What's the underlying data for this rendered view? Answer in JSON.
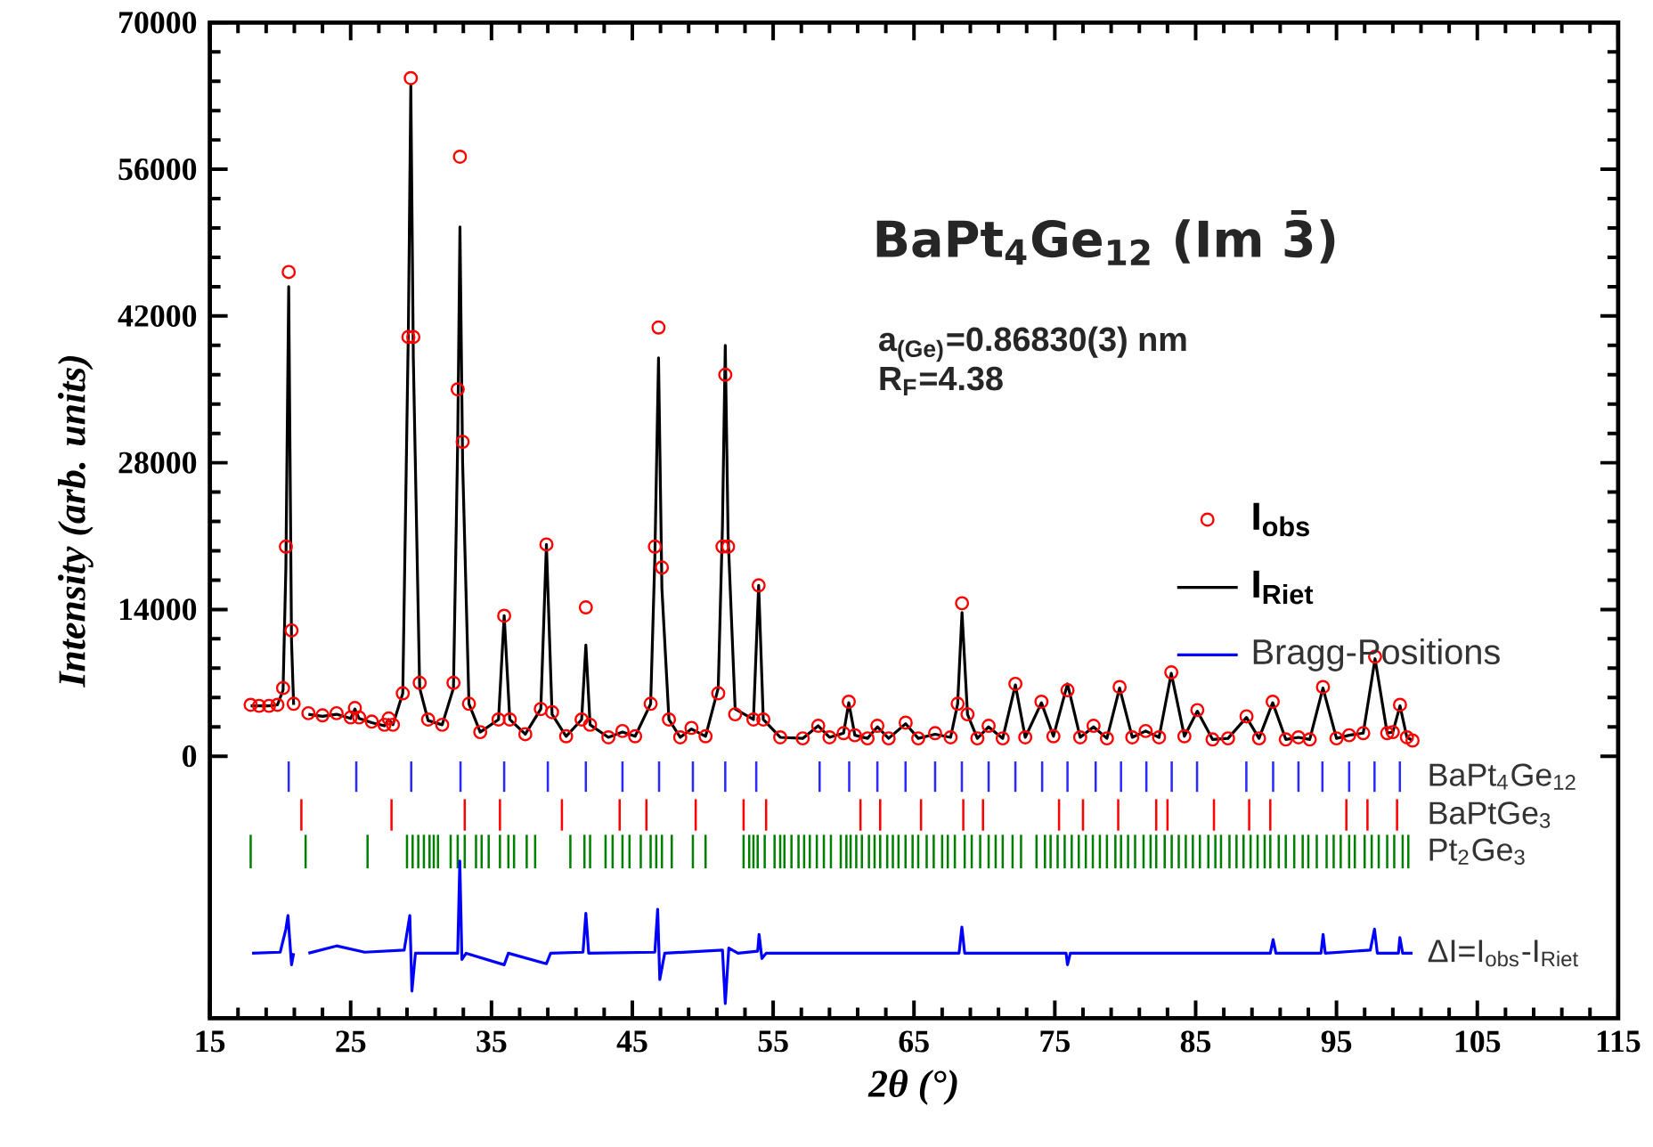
{
  "chart_data": {
    "type": "line",
    "title": "BaPt$_{4}$Ge$_{12}$ (Im 3̄)",
    "xlabel": "2θ (°)",
    "ylabel": "Intensity (arb. units)",
    "annotations": [
      "Bragg-Positions",
      "a$_{(Ge)}$=0.86830(3) nm",
      "R$_{F}$=4.38"
    ],
    "xlim": [
      15,
      115
    ],
    "xticks": [
      15,
      25,
      35,
      45,
      55,
      65,
      75,
      85,
      95,
      105,
      115
    ],
    "ylim": [
      -25000,
      70000
    ],
    "yticks": [
      0,
      14000,
      28000,
      42000,
      56000,
      70000
    ],
    "legend": "right",
    "x": [
      17.9,
      18.5,
      19.2,
      19.8,
      20.2,
      20.4,
      20.6,
      20.8,
      20.95,
      21.4,
      22.0,
      23.0,
      24.0,
      25.0,
      25.3,
      25.6,
      26.5,
      27.4,
      27.7,
      28.0,
      28.7,
      29.1,
      29.27,
      29.45,
      29.9,
      30.5,
      31.5,
      32.3,
      32.6,
      32.76,
      32.95,
      33.4,
      34.2,
      35.5,
      35.9,
      36.3,
      37.4,
      38.5,
      38.9,
      39.3,
      40.3,
      41.4,
      41.7,
      42.0,
      43.3,
      44.3,
      45.2,
      46.3,
      46.6,
      46.86,
      47.1,
      47.6,
      48.4,
      49.2,
      50.2,
      51.1,
      51.4,
      51.6,
      51.8,
      52.3,
      53.6,
      53.97,
      54.3,
      55.5,
      57.1,
      58.2,
      59.0,
      60.0,
      60.37,
      60.8,
      61.7,
      62.4,
      63.2,
      64.41,
      65.3,
      66.5,
      67.6,
      68.1,
      68.41,
      68.8,
      69.5,
      70.3,
      71.3,
      72.2,
      72.9,
      74.05,
      74.9,
      75.9,
      76.8,
      77.75,
      78.7,
      79.6,
      80.5,
      81.45,
      82.4,
      83.27,
      84.2,
      85.12,
      86.2,
      87.3,
      88.61,
      89.5,
      90.47,
      91.4,
      92.3,
      93.1,
      94.04,
      95.0,
      95.9,
      96.9,
      97.74,
      98.6,
      99.0,
      99.51,
      100.0,
      100.4
    ],
    "series": [
      {
        "name": "I$_{obs}$",
        "type": "scatter",
        "marker": "circle",
        "color": "#ff0000",
        "values": [
          4900,
          4800,
          4800,
          4900,
          6500,
          20000,
          46200,
          12000,
          5000,
          null,
          4100,
          3900,
          4100,
          3700,
          4600,
          3700,
          3300,
          3000,
          3600,
          3000,
          6000,
          40000,
          64700,
          40000,
          7000,
          3500,
          3000,
          7000,
          35000,
          57200,
          30000,
          5000,
          2300,
          3500,
          13400,
          3500,
          2100,
          4500,
          20200,
          4200,
          1900,
          3500,
          14200,
          3000,
          1800,
          2400,
          1900,
          5000,
          20000,
          40900,
          18000,
          3500,
          1800,
          2700,
          1900,
          6000,
          20000,
          36400,
          20000,
          4000,
          3500,
          16300,
          3500,
          1800,
          1700,
          2900,
          1800,
          2200,
          5200,
          2000,
          1700,
          2900,
          1700,
          3200,
          1700,
          2200,
          1800,
          5000,
          14600,
          4000,
          1700,
          2900,
          1700,
          6900,
          1800,
          5200,
          1900,
          6300,
          1800,
          2900,
          1700,
          6600,
          1800,
          2400,
          1800,
          8000,
          1900,
          4400,
          1600,
          1700,
          3800,
          1700,
          5200,
          1600,
          1800,
          1600,
          6600,
          1700,
          2000,
          2200,
          9500,
          2200,
          2300,
          4900,
          1800,
          1500
        ]
      },
      {
        "name": "I$_{Riet}$",
        "line_style": "solid",
        "color": "#000000",
        "values": [
          4800,
          4800,
          4800,
          4900,
          6300,
          18000,
          44800,
          11000,
          4900,
          null,
          4000,
          3800,
          4000,
          3600,
          4500,
          3600,
          3200,
          2900,
          3500,
          3000,
          6000,
          41000,
          64000,
          38000,
          6500,
          3400,
          3000,
          6500,
          30000,
          50500,
          28000,
          5000,
          2300,
          3500,
          13400,
          3500,
          2100,
          4500,
          20200,
          4000,
          1900,
          3500,
          10600,
          3000,
          1800,
          2300,
          1900,
          5000,
          19000,
          38000,
          16000,
          3500,
          1800,
          2600,
          1900,
          6500,
          22000,
          39200,
          21000,
          4500,
          3500,
          16300,
          3500,
          1800,
          1700,
          2900,
          1800,
          2200,
          5100,
          2000,
          1700,
          2800,
          1700,
          3100,
          1700,
          2100,
          1800,
          5000,
          13700,
          4000,
          1700,
          2800,
          1700,
          6800,
          1800,
          5100,
          1900,
          6900,
          1800,
          2800,
          1700,
          6500,
          1800,
          2400,
          1800,
          7900,
          1900,
          4300,
          1600,
          1700,
          3700,
          1700,
          5100,
          1600,
          1800,
          1600,
          6500,
          1700,
          2000,
          2200,
          9300,
          2200,
          2300,
          4800,
          1800,
          1500
        ]
      },
      {
        "name": "BaPt$_{4}$Ge$_{12}$",
        "type": "bar",
        "color": "#2a2aff",
        "x": [
          20.6,
          25.4,
          29.3,
          32.8,
          35.9,
          39.0,
          41.7,
          44.3,
          46.9,
          49.3,
          51.6,
          53.8,
          58.3,
          60.4,
          62.4,
          64.4,
          66.5,
          68.4,
          70.3,
          72.2,
          74.1,
          75.9,
          77.9,
          79.7,
          81.5,
          83.3,
          85.1,
          88.6,
          90.5,
          92.3,
          94.0,
          95.9,
          97.7,
          99.5
        ],
        "base": [
          -3400,
          -3400,
          -3400,
          -3400,
          -3400,
          -3400,
          -3400,
          -3400,
          -3400,
          -3400,
          -3400,
          -3400,
          -3400,
          -3400,
          -3400,
          -3400,
          -3400,
          -3400,
          -3400,
          -3400,
          -3400,
          -3400,
          -3400,
          -3400,
          -3400,
          -3400,
          -3400,
          -3400,
          -3400,
          -3400,
          -3400,
          -3400,
          -3400,
          -3400
        ],
        "values": [
          2900,
          2900,
          2900,
          2900,
          2900,
          2900,
          2900,
          2900,
          2900,
          2900,
          2900,
          2900,
          2900,
          2900,
          2900,
          2900,
          2900,
          2900,
          2900,
          2900,
          2900,
          2900,
          2900,
          2900,
          2900,
          2900,
          2900,
          2900,
          2900,
          2900,
          2900,
          2900,
          2900,
          2900
        ]
      },
      {
        "name": "BaPtGe$_{3}$",
        "type": "bar",
        "color": "#ff0000",
        "x": [
          21.5,
          27.9,
          33.1,
          35.6,
          40.0,
          44.1,
          46.0,
          49.5,
          52.9,
          54.5,
          61.2,
          62.6,
          65.5,
          68.5,
          69.9,
          75.3,
          77.0,
          79.5,
          82.2,
          83.0,
          86.3,
          88.8,
          90.3,
          95.7,
          97.2,
          99.3
        ],
        "base": [
          -7100,
          -7100,
          -7100,
          -7100,
          -7100,
          -7100,
          -7100,
          -7100,
          -7100,
          -7100,
          -7100,
          -7100,
          -7100,
          -7100,
          -7100,
          -7100,
          -7100,
          -7100,
          -7100,
          -7100,
          -7100,
          -7100,
          -7100,
          -7100,
          -7100,
          -7100
        ],
        "values": [
          3000,
          3000,
          3000,
          3000,
          3000,
          3000,
          3000,
          3000,
          3000,
          3000,
          3000,
          3000,
          3000,
          3000,
          3000,
          3000,
          3000,
          3000,
          3000,
          3000,
          3000,
          3000,
          3000,
          3000,
          3000,
          3000
        ]
      },
      {
        "name": "Pt$_{2}$Ge$_{3}$",
        "type": "bar",
        "color": "#008000",
        "x": [
          17.9,
          21.8,
          26.2,
          29.0,
          29.4,
          29.8,
          30.2,
          30.6,
          30.9,
          31.2,
          32.1,
          32.6,
          33.1,
          33.9,
          34.3,
          34.8,
          35.6,
          36.2,
          36.6,
          37.5,
          38.1,
          40.6,
          41.6,
          42.0,
          43.1,
          43.6,
          44.3,
          44.8,
          45.6,
          46.3,
          46.7,
          47.1,
          47.8,
          49.3,
          50.2,
          52.9,
          53.3,
          53.6,
          53.9,
          54.4,
          55.1,
          55.5,
          55.8,
          56.3,
          56.8,
          57.2,
          57.6,
          58.1,
          58.6,
          59.1,
          59.8,
          60.2,
          60.5,
          60.9,
          61.3,
          61.8,
          62.2,
          62.6,
          63.1,
          63.5,
          63.9,
          64.4,
          64.9,
          65.3,
          65.9,
          66.4,
          67.0,
          67.4,
          67.9,
          68.6,
          69.1,
          69.7,
          70.3,
          70.8,
          71.3,
          72.0,
          72.6,
          73.7,
          74.3,
          74.7,
          75.2,
          75.7,
          76.2,
          76.7,
          77.2,
          77.7,
          78.2,
          78.7,
          79.3,
          79.7,
          80.2,
          80.7,
          81.3,
          81.8,
          82.2,
          82.8,
          83.3,
          83.8,
          84.3,
          84.8,
          85.3,
          85.9,
          86.4,
          86.8,
          87.4,
          87.9,
          88.4,
          88.9,
          89.4,
          89.9,
          90.3,
          90.9,
          91.4,
          92.0,
          92.6,
          93.0,
          93.6,
          94.3,
          94.8,
          95.3,
          95.9,
          96.3,
          97.0,
          97.5,
          98.0,
          98.6,
          99.1,
          99.7,
          100.1
        ],
        "base": [
          -10700,
          -10700,
          -10700,
          -10700,
          -10700,
          -10700,
          -10700,
          -10700,
          -10700,
          -10700,
          -10700,
          -10700,
          -10700,
          -10700,
          -10700,
          -10700,
          -10700,
          -10700,
          -10700,
          -10700,
          -10700,
          -10700,
          -10700,
          -10700,
          -10700,
          -10700,
          -10700,
          -10700,
          -10700,
          -10700,
          -10700,
          -10700,
          -10700,
          -10700,
          -10700,
          -10700,
          -10700,
          -10700,
          -10700,
          -10700,
          -10700,
          -10700,
          -10700,
          -10700,
          -10700,
          -10700,
          -10700,
          -10700,
          -10700,
          -10700,
          -10700,
          -10700,
          -10700,
          -10700,
          -10700,
          -10700,
          -10700,
          -10700,
          -10700,
          -10700,
          -10700,
          -10700,
          -10700,
          -10700,
          -10700,
          -10700,
          -10700,
          -10700,
          -10700,
          -10700,
          -10700,
          -10700,
          -10700,
          -10700,
          -10700,
          -10700,
          -10700,
          -10700,
          -10700,
          -10700,
          -10700,
          -10700,
          -10700,
          -10700,
          -10700,
          -10700,
          -10700,
          -10700,
          -10700,
          -10700,
          -10700,
          -10700,
          -10700,
          -10700,
          -10700,
          -10700,
          -10700,
          -10700,
          -10700,
          -10700,
          -10700,
          -10700,
          -10700,
          -10700,
          -10700,
          -10700,
          -10700,
          -10700,
          -10700,
          -10700,
          -10700,
          -10700,
          -10700,
          -10700,
          -10700,
          -10700,
          -10700,
          -10700,
          -10700,
          -10700,
          -10700,
          -10700,
          -10700,
          -10700,
          -10700,
          -10700,
          -10700,
          -10700,
          -10700
        ],
        "values": [
          3200,
          3200,
          3200,
          3200,
          3200,
          3200,
          3200,
          3200,
          3200,
          3200,
          3200,
          3200,
          3200,
          3200,
          3200,
          3200,
          3200,
          3200,
          3200,
          3200,
          3200,
          3200,
          3200,
          3200,
          3200,
          3200,
          3200,
          3200,
          3200,
          3200,
          3200,
          3200,
          3200,
          3200,
          3200,
          3200,
          3200,
          3200,
          3200,
          3200,
          3200,
          3200,
          3200,
          3200,
          3200,
          3200,
          3200,
          3200,
          3200,
          3200,
          3200,
          3200,
          3200,
          3200,
          3200,
          3200,
          3200,
          3200,
          3200,
          3200,
          3200,
          3200,
          3200,
          3200,
          3200,
          3200,
          3200,
          3200,
          3200,
          3200,
          3200,
          3200,
          3200,
          3200,
          3200,
          3200,
          3200,
          3200,
          3200,
          3200,
          3200,
          3200,
          3200,
          3200,
          3200,
          3200,
          3200,
          3200,
          3200,
          3200,
          3200,
          3200,
          3200,
          3200,
          3200,
          3200,
          3200,
          3200,
          3200,
          3200,
          3200,
          3200,
          3200,
          3200,
          3200,
          3200,
          3200,
          3200,
          3200,
          3200,
          3200,
          3200,
          3200,
          3200,
          3200,
          3200,
          3200,
          3200,
          3200,
          3200,
          3200,
          3200,
          3200,
          3200,
          3200,
          3200,
          3200,
          3200,
          3200
        ]
      },
      {
        "name": "ΔI=I$_{obs}$-I$_{Riet}$",
        "line_style": "solid",
        "color": "#0000ff",
        "x": [
          18.0,
          20.0,
          20.4,
          20.55,
          20.8,
          20.95,
          21.4,
          22.0,
          24.0,
          26.0,
          28.8,
          29.2,
          29.35,
          29.6,
          32.6,
          32.75,
          32.9,
          33.2,
          35.9,
          36.2,
          38.9,
          39.2,
          41.5,
          41.7,
          41.9,
          46.6,
          46.8,
          46.95,
          47.3,
          51.4,
          51.6,
          51.85,
          52.5,
          53.9,
          54.0,
          54.2,
          54.5,
          68.2,
          68.4,
          68.6,
          75.8,
          75.9,
          76.1,
          90.3,
          90.5,
          90.7,
          93.9,
          94.05,
          94.2,
          97.4,
          97.7,
          97.9,
          99.4,
          99.5,
          99.7,
          100.4
        ],
        "values": [
          -18800,
          -18700,
          -16500,
          -15200,
          -19900,
          -18800,
          null,
          -18800,
          -18100,
          -18700,
          -18500,
          -15200,
          -22400,
          -18800,
          -18800,
          -10000,
          -19400,
          -18800,
          -19900,
          -18800,
          -19800,
          -18800,
          -18700,
          -15000,
          -18800,
          -18700,
          -14600,
          -21300,
          -18800,
          -18500,
          -23600,
          -18300,
          -18800,
          -18600,
          -17000,
          -19300,
          -18800,
          -18800,
          -16300,
          -18800,
          -18800,
          -19900,
          -18800,
          -18800,
          -17500,
          -18800,
          -18800,
          -17000,
          -18800,
          -18500,
          -16500,
          -18800,
          -18800,
          -17300,
          -18800,
          -18800
        ]
      }
    ]
  }
}
